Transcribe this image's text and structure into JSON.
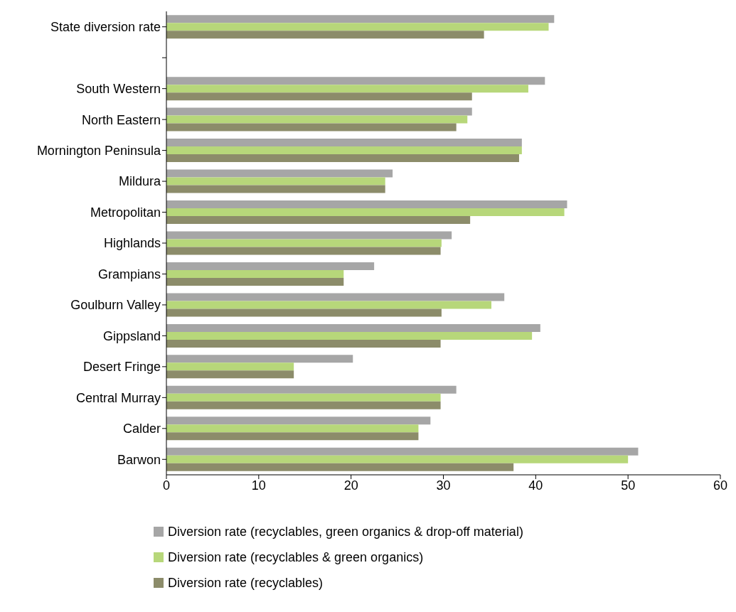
{
  "chart_data": {
    "type": "bar",
    "orientation": "horizontal",
    "categories": [
      "State diversion rate",
      null,
      "South Western",
      "North Eastern",
      "Mornington Peninsula",
      "Mildura",
      "Metropolitan",
      "Highlands",
      "Grampians",
      "Goulburn Valley",
      "Gippsland",
      "Desert Fringe",
      "Central Murray",
      "Calder",
      "Barwon"
    ],
    "series": [
      {
        "name": "Diversion rate (recyclables, green organics & drop-off material)",
        "color": "#a6a6a6",
        "values": [
          42.0,
          null,
          41.0,
          33.1,
          38.5,
          24.5,
          43.4,
          30.9,
          22.5,
          36.6,
          40.5,
          20.2,
          31.4,
          28.6,
          51.1
        ]
      },
      {
        "name": "Diversion rate (recyclables & green organics)",
        "color": "#b7d77a",
        "values": [
          41.4,
          null,
          39.2,
          32.6,
          38.5,
          23.7,
          43.1,
          29.8,
          19.2,
          35.2,
          39.6,
          13.8,
          29.7,
          27.3,
          50.0
        ]
      },
      {
        "name": "Diversion rate (recyclables)",
        "color": "#8c8c6a",
        "values": [
          34.4,
          null,
          33.1,
          31.4,
          38.2,
          23.7,
          32.9,
          29.7,
          19.2,
          29.8,
          29.7,
          13.8,
          29.7,
          27.3,
          37.6
        ]
      }
    ],
    "xlim": [
      0,
      60
    ],
    "xticks": [
      0,
      10,
      20,
      30,
      40,
      50,
      60
    ],
    "grid": false,
    "legend": "bottom"
  }
}
